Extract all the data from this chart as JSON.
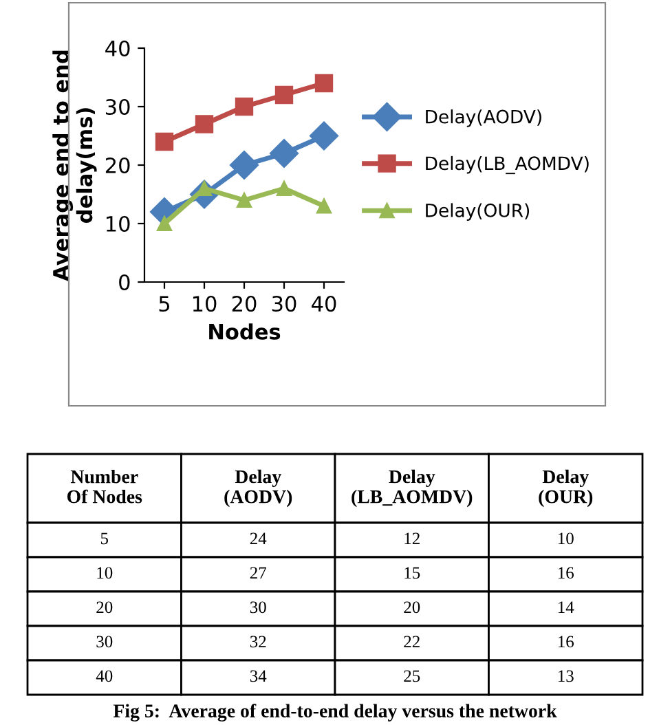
{
  "chart_data": [
    {
      "type": "line",
      "xlabel": "Nodes",
      "ylabel": "Average end to end delay(ms)",
      "categories": [
        "5",
        "10",
        "20",
        "30",
        "40"
      ],
      "series": [
        {
          "name": "Delay(AODV)",
          "color": "#4a7ebb",
          "marker": "diamond",
          "values": [
            12,
            15,
            20,
            22,
            25
          ]
        },
        {
          "name": "Delay(LB_AOMDV)",
          "color": "#be4b48",
          "marker": "square",
          "values": [
            24,
            27,
            30,
            32,
            34
          ]
        },
        {
          "name": "Delay(OUR)",
          "color": "#98b954",
          "marker": "triangle",
          "values": [
            10,
            16,
            14,
            16,
            13
          ]
        }
      ],
      "ylim": [
        0,
        40
      ],
      "yticks": [
        0,
        10,
        20,
        30,
        40
      ],
      "grid": false,
      "legend": "right"
    },
    {
      "type": "other",
      "title": "Fig 5:  Average of end-to-end delay versus the network",
      "annotations": [
        "Number\nOf Nodes",
        "Delay\n(AODV)",
        "Delay\n(LB_AOMDV)",
        "Delay\n(OUR)",
        "5",
        "24",
        "12",
        "10",
        "10",
        "27",
        "15",
        "16",
        "20",
        "30",
        "20",
        "14",
        "30",
        "32",
        "22",
        "16",
        "40",
        "34",
        "25",
        "13"
      ]
    }
  ]
}
